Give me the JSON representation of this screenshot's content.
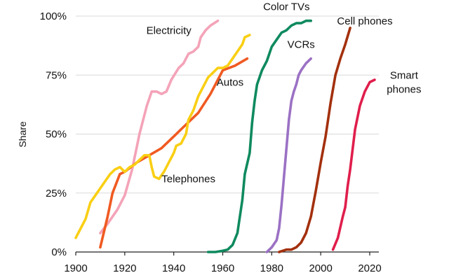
{
  "chart_data": {
    "type": "line",
    "title": "",
    "xlabel": "",
    "ylabel": "Share",
    "xlim": [
      1900,
      2022
    ],
    "ylim": [
      0,
      100
    ],
    "x_ticks": [
      1900,
      1920,
      1940,
      1960,
      1980,
      2000,
      2020
    ],
    "y_ticks": [
      0,
      25,
      50,
      75,
      100
    ],
    "y_tick_labels": [
      "0%",
      "25%",
      "50%",
      "75%",
      "100%"
    ],
    "grid": "horizontal",
    "legend": "none (series labelled directly on the lines)",
    "series": [
      {
        "name": "Electricity",
        "color": "#f4a3b8",
        "points": [
          [
            1910,
            8
          ],
          [
            1913,
            12
          ],
          [
            1917,
            18
          ],
          [
            1920,
            24
          ],
          [
            1923,
            35
          ],
          [
            1926,
            50
          ],
          [
            1929,
            62
          ],
          [
            1931,
            68
          ],
          [
            1933,
            68
          ],
          [
            1935,
            67
          ],
          [
            1937,
            68
          ],
          [
            1939,
            73
          ],
          [
            1942,
            78
          ],
          [
            1944,
            80
          ],
          [
            1946,
            84
          ],
          [
            1948,
            85
          ],
          [
            1950,
            87
          ],
          [
            1951,
            91
          ],
          [
            1953,
            94
          ],
          [
            1955,
            96
          ],
          [
            1958,
            98
          ]
        ]
      },
      {
        "name": "Autos",
        "color": "#f05a22",
        "points": [
          [
            1910,
            2
          ],
          [
            1913,
            15
          ],
          [
            1915,
            25
          ],
          [
            1918,
            33
          ],
          [
            1920,
            34
          ],
          [
            1925,
            38
          ],
          [
            1930,
            41
          ],
          [
            1935,
            44
          ],
          [
            1940,
            49
          ],
          [
            1945,
            54
          ],
          [
            1950,
            59
          ],
          [
            1955,
            67
          ],
          [
            1960,
            77
          ],
          [
            1965,
            79
          ],
          [
            1970,
            82
          ]
        ]
      },
      {
        "name": "Telephones",
        "color": "#f9cf14",
        "points": [
          [
            1900,
            6
          ],
          [
            1902,
            10
          ],
          [
            1904,
            14
          ],
          [
            1906,
            21
          ],
          [
            1908,
            24
          ],
          [
            1910,
            27
          ],
          [
            1912,
            30
          ],
          [
            1914,
            33
          ],
          [
            1916,
            35
          ],
          [
            1918,
            36
          ],
          [
            1920,
            34
          ],
          [
            1922,
            36
          ],
          [
            1924,
            37
          ],
          [
            1926,
            39
          ],
          [
            1928,
            41
          ],
          [
            1930,
            41
          ],
          [
            1931,
            36
          ],
          [
            1932,
            32
          ],
          [
            1934,
            31
          ],
          [
            1936,
            34
          ],
          [
            1938,
            38
          ],
          [
            1940,
            42
          ],
          [
            1941,
            45
          ],
          [
            1943,
            46
          ],
          [
            1945,
            50
          ],
          [
            1946,
            56
          ],
          [
            1948,
            60
          ],
          [
            1950,
            66
          ],
          [
            1952,
            70
          ],
          [
            1954,
            74
          ],
          [
            1956,
            76
          ],
          [
            1958,
            78
          ],
          [
            1960,
            78
          ],
          [
            1962,
            79
          ],
          [
            1964,
            82
          ],
          [
            1966,
            85
          ],
          [
            1968,
            88
          ],
          [
            1969,
            91
          ],
          [
            1971,
            92
          ]
        ]
      },
      {
        "name": "Color TVs",
        "color": "#0f8a5f",
        "points": [
          [
            1954,
            0
          ],
          [
            1957,
            0
          ],
          [
            1960,
            0.5
          ],
          [
            1962,
            1
          ],
          [
            1964,
            3
          ],
          [
            1966,
            8
          ],
          [
            1968,
            22
          ],
          [
            1969,
            33
          ],
          [
            1971,
            42
          ],
          [
            1972,
            55
          ],
          [
            1973,
            64
          ],
          [
            1974,
            71
          ],
          [
            1976,
            77
          ],
          [
            1978,
            81
          ],
          [
            1980,
            87
          ],
          [
            1982,
            90
          ],
          [
            1984,
            93
          ],
          [
            1986,
            94
          ],
          [
            1988,
            96
          ],
          [
            1990,
            97
          ],
          [
            1992,
            97
          ],
          [
            1994,
            98
          ],
          [
            1996,
            98
          ]
        ]
      },
      {
        "name": "VCRs",
        "color": "#9b71c4",
        "points": [
          [
            1978,
            0
          ],
          [
            1980,
            2
          ],
          [
            1982,
            5
          ],
          [
            1983,
            10
          ],
          [
            1984,
            20
          ],
          [
            1985,
            32
          ],
          [
            1986,
            44
          ],
          [
            1987,
            56
          ],
          [
            1988,
            64
          ],
          [
            1989,
            68
          ],
          [
            1990,
            71
          ],
          [
            1991,
            75
          ],
          [
            1992,
            77
          ],
          [
            1994,
            80
          ],
          [
            1996,
            82
          ]
        ]
      },
      {
        "name": "Cell phones",
        "color": "#a3300d",
        "points": [
          [
            1983,
            0
          ],
          [
            1986,
            1
          ],
          [
            1988,
            1
          ],
          [
            1990,
            2
          ],
          [
            1992,
            4
          ],
          [
            1994,
            8
          ],
          [
            1996,
            15
          ],
          [
            1998,
            26
          ],
          [
            2000,
            38
          ],
          [
            2002,
            49
          ],
          [
            2004,
            63
          ],
          [
            2006,
            75
          ],
          [
            2008,
            82
          ],
          [
            2010,
            88
          ],
          [
            2012,
            95
          ]
        ]
      },
      {
        "name": "Smart\nphones",
        "color": "#e01e4c",
        "points": [
          [
            2005,
            1
          ],
          [
            2007,
            6
          ],
          [
            2009,
            15
          ],
          [
            2010,
            19
          ],
          [
            2011,
            28
          ],
          [
            2012,
            35
          ],
          [
            2014,
            52
          ],
          [
            2016,
            62
          ],
          [
            2018,
            68
          ],
          [
            2020,
            72
          ],
          [
            2022,
            73
          ]
        ]
      }
    ],
    "annotations": [
      {
        "series": "Electricity",
        "text": "Electricity",
        "x": 1938,
        "y": 92.5,
        "anchor": "middle"
      },
      {
        "series": "Autos",
        "text": "Autos",
        "x": 1963,
        "y": 70.5,
        "anchor": "middle"
      },
      {
        "series": "Telephones",
        "text": "Telephones",
        "x": 1946,
        "y": 29.5,
        "anchor": "middle"
      },
      {
        "series": "Color TVs",
        "text": "Color TVs",
        "x": 1986,
        "y": 102.5,
        "anchor": "middle"
      },
      {
        "series": "VCRs",
        "text": "VCRs",
        "x": 1992,
        "y": 86.5,
        "anchor": "middle"
      },
      {
        "series": "Cell phones",
        "text": "Cell phones",
        "x": 2018,
        "y": 96.5,
        "anchor": "middle"
      },
      {
        "series": "Smart\nphones",
        "text": "Smart",
        "x": 2034,
        "y": 73.5,
        "anchor": "middle"
      },
      {
        "series": "Smart\nphones",
        "text": "phones",
        "x": 2034,
        "y": 67.5,
        "anchor": "middle"
      }
    ]
  }
}
